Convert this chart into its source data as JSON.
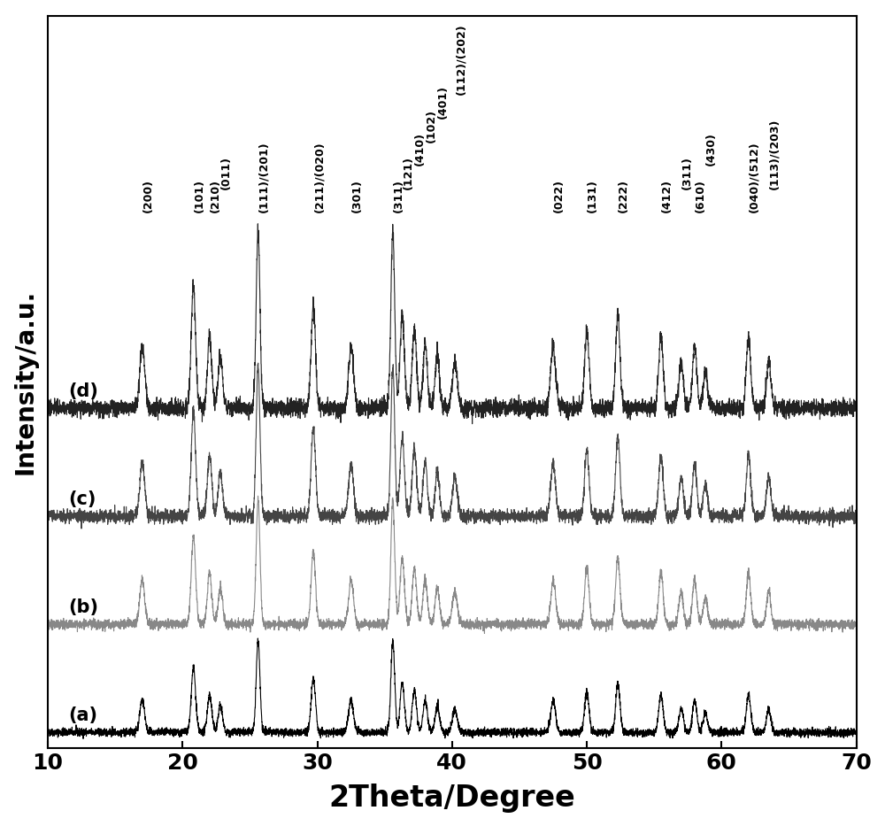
{
  "title": "",
  "xlabel": "2Theta/Degree",
  "ylabel": "Intensity/a.u.",
  "xlim": [
    10,
    70
  ],
  "xlabel_fontsize": 24,
  "ylabel_fontsize": 20,
  "tick_fontsize": 18,
  "series_labels": [
    "(a)",
    "(b)",
    "(c)",
    "(d)"
  ],
  "series_colors": [
    "#000000",
    "#888888",
    "#444444",
    "#222222"
  ],
  "offsets": [
    0.0,
    0.55,
    1.1,
    1.65
  ],
  "peak_positions": [
    17.0,
    20.8,
    22.0,
    22.8,
    25.6,
    29.7,
    32.5,
    35.6,
    36.3,
    37.2,
    38.0,
    38.9,
    40.2,
    47.5,
    50.0,
    52.3,
    55.5,
    57.0,
    58.0,
    58.8,
    62.0,
    63.5
  ],
  "peak_heights": [
    0.3,
    0.6,
    0.35,
    0.25,
    0.85,
    0.5,
    0.3,
    0.85,
    0.45,
    0.38,
    0.3,
    0.25,
    0.22,
    0.3,
    0.38,
    0.45,
    0.35,
    0.22,
    0.3,
    0.18,
    0.35,
    0.22
  ],
  "peak_widths": [
    0.18,
    0.16,
    0.16,
    0.16,
    0.14,
    0.16,
    0.18,
    0.14,
    0.16,
    0.16,
    0.16,
    0.16,
    0.18,
    0.18,
    0.16,
    0.16,
    0.16,
    0.16,
    0.16,
    0.16,
    0.16,
    0.16
  ],
  "annotations": [
    {
      "label": "(200)",
      "x": 17.0,
      "col_group": 0
    },
    {
      "label": "(101)",
      "x": 20.8,
      "col_group": 1
    },
    {
      "label": "(210)",
      "x": 22.0,
      "col_group": 2
    },
    {
      "label": "(011)",
      "x": 22.8,
      "col_group": 3
    },
    {
      "label": "(111)/(201)",
      "x": 25.6,
      "col_group": 4
    },
    {
      "label": "(211)/(020)",
      "x": 29.7,
      "col_group": 5
    },
    {
      "label": "(301)",
      "x": 32.5,
      "col_group": 6
    },
    {
      "label": "(311)",
      "x": 35.6,
      "col_group": 7
    },
    {
      "label": "(121)",
      "x": 36.3,
      "col_group": 8
    },
    {
      "label": "(410)",
      "x": 37.2,
      "col_group": 9
    },
    {
      "label": "(102)",
      "x": 38.0,
      "col_group": 10
    },
    {
      "label": "(401)",
      "x": 38.9,
      "col_group": 11
    },
    {
      "label": "(112)/(202)",
      "x": 40.2,
      "col_group": 12
    },
    {
      "label": "(022)",
      "x": 47.5,
      "col_group": 13
    },
    {
      "label": "(131)",
      "x": 50.0,
      "col_group": 14
    },
    {
      "label": "(222)",
      "x": 52.3,
      "col_group": 15
    },
    {
      "label": "(412)",
      "x": 55.5,
      "col_group": 16
    },
    {
      "label": "(311)",
      "x": 57.0,
      "col_group": 17
    },
    {
      "label": "(610)",
      "x": 58.0,
      "col_group": 18
    },
    {
      "label": "(430)",
      "x": 58.8,
      "col_group": 19
    },
    {
      "label": "(040)/(512)",
      "x": 62.0,
      "col_group": 20
    },
    {
      "label": "(113)/(203)",
      "x": 63.5,
      "col_group": 21
    }
  ],
  "background_color": "#ffffff"
}
